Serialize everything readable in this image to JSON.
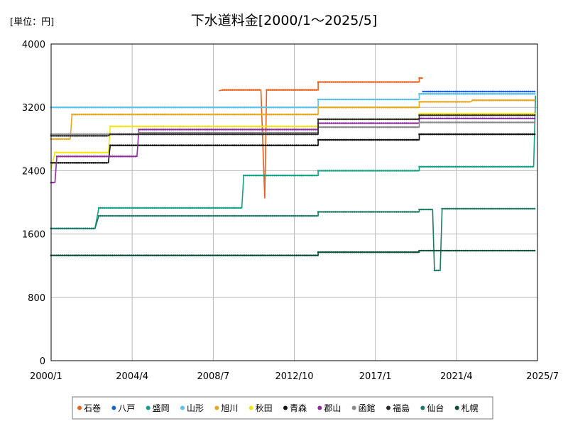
{
  "unit_label": "[単位：円]",
  "chart_data": {
    "type": "line",
    "title": "下水道料金[2000/1～2025/5]",
    "xlabel": "",
    "ylabel": "",
    "x_range": [
      2000.0,
      2025.5
    ],
    "ylim": [
      0,
      4000
    ],
    "y_ticks": [
      0,
      800,
      1600,
      2400,
      3200,
      4000
    ],
    "y_tick_labels": [
      "0",
      "800",
      "1600",
      "2400",
      "3200",
      "4000"
    ],
    "x_ticks": [
      2000.0,
      2004.25,
      2008.5,
      2012.75,
      2017.0,
      2021.25,
      2025.5
    ],
    "x_tick_labels": [
      "2000/1",
      "2004/4",
      "2008/7",
      "2012/10",
      "2017/1",
      "2021/4",
      "2025/7"
    ],
    "grid": true,
    "legend_position": "bottom",
    "series": [
      {
        "name": "石巻",
        "color": "#e8601c",
        "points": [
          [
            2008.8,
            3410
          ],
          [
            2009.0,
            3420
          ],
          [
            2011.0,
            3420
          ],
          [
            2011.2,
            2050
          ],
          [
            2011.3,
            3420
          ],
          [
            2014.0,
            3420
          ],
          [
            2014.0,
            3520
          ],
          [
            2019.3,
            3520
          ],
          [
            2019.3,
            3570
          ],
          [
            2019.5,
            3570
          ]
        ]
      },
      {
        "name": "八戸",
        "color": "#1f5fd6",
        "points": [
          [
            2019.5,
            3400
          ],
          [
            2025.4,
            3400
          ]
        ]
      },
      {
        "name": "盛岡",
        "color": "#16a085",
        "points": [
          [
            2000.0,
            1670
          ],
          [
            2002.3,
            1670
          ],
          [
            2002.5,
            1930
          ],
          [
            2010.0,
            1930
          ],
          [
            2010.1,
            2340
          ],
          [
            2014.0,
            2340
          ],
          [
            2014.0,
            2400
          ],
          [
            2019.3,
            2400
          ],
          [
            2019.3,
            2450
          ],
          [
            2025.3,
            2450
          ],
          [
            2025.4,
            3350
          ]
        ]
      },
      {
        "name": "山形",
        "color": "#5bc0eb",
        "points": [
          [
            2000.0,
            3200
          ],
          [
            2014.0,
            3200
          ],
          [
            2014.0,
            3300
          ],
          [
            2019.3,
            3300
          ],
          [
            2019.3,
            3370
          ],
          [
            2025.4,
            3370
          ]
        ]
      },
      {
        "name": "旭川",
        "color": "#e5a823",
        "points": [
          [
            2000.0,
            2800
          ],
          [
            2001.0,
            2800
          ],
          [
            2001.1,
            3110
          ],
          [
            2014.0,
            3110
          ],
          [
            2014.0,
            3200
          ],
          [
            2019.3,
            3200
          ],
          [
            2019.3,
            3270
          ],
          [
            2022.0,
            3270
          ],
          [
            2022.1,
            3290
          ],
          [
            2025.4,
            3290
          ]
        ]
      },
      {
        "name": "秋田",
        "color": "#f5e312",
        "points": [
          [
            2000.0,
            2420
          ],
          [
            2000.2,
            2630
          ],
          [
            2003.0,
            2630
          ],
          [
            2003.1,
            2960
          ],
          [
            2014.0,
            2960
          ],
          [
            2014.0,
            3050
          ],
          [
            2019.3,
            3050
          ],
          [
            2019.3,
            3120
          ],
          [
            2025.4,
            3120
          ]
        ]
      },
      {
        "name": "青森",
        "color": "#111111",
        "points": [
          [
            2000.0,
            2500
          ],
          [
            2003.0,
            2500
          ],
          [
            2003.1,
            2720
          ],
          [
            2014.0,
            2720
          ],
          [
            2014.0,
            2790
          ],
          [
            2019.3,
            2790
          ],
          [
            2019.3,
            2860
          ],
          [
            2025.4,
            2860
          ]
        ]
      },
      {
        "name": "郡山",
        "color": "#8e2c9e",
        "points": [
          [
            2000.0,
            2250
          ],
          [
            2000.2,
            2250
          ],
          [
            2000.3,
            2580
          ],
          [
            2004.5,
            2580
          ],
          [
            2004.6,
            2920
          ],
          [
            2014.0,
            2920
          ],
          [
            2014.0,
            3000
          ],
          [
            2019.3,
            3000
          ],
          [
            2019.3,
            3060
          ],
          [
            2025.4,
            3060
          ]
        ]
      },
      {
        "name": "函館",
        "color": "#8a8a8a",
        "points": [
          [
            2000.0,
            2860
          ],
          [
            2004.5,
            2860
          ],
          [
            2004.6,
            2880
          ],
          [
            2014.0,
            2880
          ],
          [
            2014.0,
            2950
          ],
          [
            2019.3,
            2950
          ],
          [
            2019.3,
            3010
          ],
          [
            2025.4,
            3010
          ]
        ]
      },
      {
        "name": "福島",
        "color": "#2b2b2b",
        "points": [
          [
            2000.0,
            2840
          ],
          [
            2003.0,
            2840
          ],
          [
            2003.1,
            2860
          ],
          [
            2014.0,
            2860
          ],
          [
            2014.0,
            3050
          ],
          [
            2019.3,
            3050
          ],
          [
            2019.3,
            3100
          ],
          [
            2025.4,
            3100
          ]
        ]
      },
      {
        "name": "仙台",
        "color": "#1d7a65",
        "points": [
          [
            2000.0,
            1670
          ],
          [
            2002.3,
            1670
          ],
          [
            2002.5,
            1830
          ],
          [
            2010.0,
            1830
          ],
          [
            2010.1,
            1830
          ],
          [
            2014.0,
            1830
          ],
          [
            2014.0,
            1880
          ],
          [
            2019.3,
            1880
          ],
          [
            2019.3,
            1910
          ],
          [
            2020.0,
            1910
          ],
          [
            2020.1,
            1140
          ],
          [
            2020.4,
            1140
          ],
          [
            2020.5,
            1920
          ],
          [
            2025.4,
            1920
          ]
        ]
      },
      {
        "name": "札幌",
        "color": "#0d4d3a",
        "points": [
          [
            2000.0,
            1330
          ],
          [
            2014.0,
            1330
          ],
          [
            2014.0,
            1370
          ],
          [
            2019.3,
            1370
          ],
          [
            2019.3,
            1390
          ],
          [
            2025.4,
            1390
          ]
        ]
      }
    ]
  }
}
